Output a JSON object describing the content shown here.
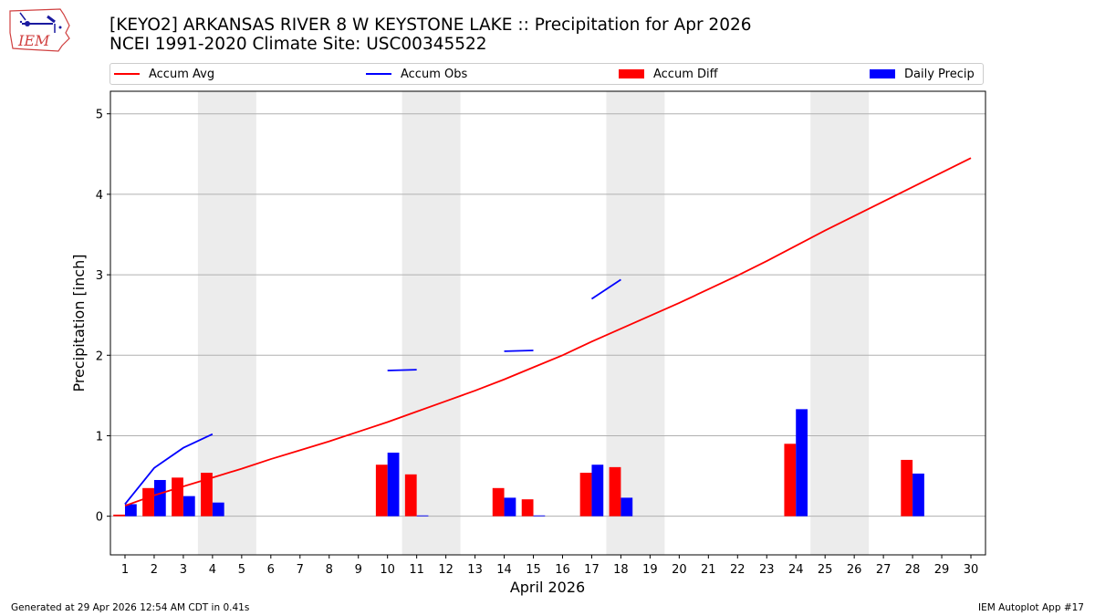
{
  "header": {
    "logo_text": "IEM",
    "title_line1": "[KEYO2] ARKANSAS RIVER 8 W KEYSTONE LAKE :: Precipitation for Apr 2026",
    "title_line2": "NCEI 1991-2020 Climate Site: USC00345522"
  },
  "legend": {
    "accum_avg": "Accum Avg",
    "accum_obs": "Accum Obs",
    "accum_diff": "Accum Diff",
    "daily_precip": "Daily Precip"
  },
  "colors": {
    "avg": "#ff0000",
    "obs": "#0000ff",
    "diff": "#ff0000",
    "daily": "#0000ff",
    "weekend": "#ececec",
    "grid": "#b0b0b0"
  },
  "chart_data": {
    "type": "bar",
    "xlabel": "April 2026",
    "ylabel": "Precipitation [inch]",
    "xlim": [
      0.5,
      30.5
    ],
    "ylim": [
      -0.48,
      5.28
    ],
    "yticks": [
      0,
      1,
      2,
      3,
      4,
      5
    ],
    "days": [
      1,
      2,
      3,
      4,
      5,
      6,
      7,
      8,
      9,
      10,
      11,
      12,
      13,
      14,
      15,
      16,
      17,
      18,
      19,
      20,
      21,
      22,
      23,
      24,
      25,
      26,
      27,
      28,
      29,
      30
    ],
    "weekend_spans": [
      [
        3.5,
        5.5
      ],
      [
        10.5,
        12.5
      ],
      [
        17.5,
        19.5
      ],
      [
        24.5,
        26.5
      ]
    ],
    "accum_avg": [
      0.13,
      0.26,
      0.37,
      0.48,
      0.59,
      0.71,
      0.82,
      0.93,
      1.05,
      1.17,
      1.3,
      1.43,
      1.56,
      1.7,
      1.85,
      2.0,
      2.17,
      2.33,
      2.49,
      2.65,
      2.82,
      2.99,
      3.17,
      3.36,
      3.55,
      3.73,
      3.91,
      4.09,
      4.27,
      4.45
    ],
    "accum_obs_segments": [
      [
        [
          1,
          0.15
        ],
        [
          2,
          0.6
        ],
        [
          3,
          0.85
        ],
        [
          4,
          1.02
        ]
      ],
      [
        [
          10,
          1.81
        ],
        [
          11,
          1.82
        ]
      ],
      [
        [
          14,
          2.05
        ],
        [
          15,
          2.06
        ]
      ],
      [
        [
          17,
          2.7
        ],
        [
          18,
          2.94
        ]
      ]
    ],
    "accum_diff": [
      {
        "day": 1,
        "value": 0.02
      },
      {
        "day": 2,
        "value": 0.35
      },
      {
        "day": 3,
        "value": 0.48
      },
      {
        "day": 4,
        "value": 0.54
      },
      {
        "day": 10,
        "value": 0.64
      },
      {
        "day": 11,
        "value": 0.52
      },
      {
        "day": 14,
        "value": 0.35
      },
      {
        "day": 15,
        "value": 0.21
      },
      {
        "day": 17,
        "value": 0.54
      },
      {
        "day": 18,
        "value": 0.61
      },
      {
        "day": 24,
        "value": 0.9
      },
      {
        "day": 28,
        "value": 0.7
      }
    ],
    "daily_precip": [
      {
        "day": 1,
        "value": 0.15
      },
      {
        "day": 2,
        "value": 0.45
      },
      {
        "day": 3,
        "value": 0.25
      },
      {
        "day": 4,
        "value": 0.17
      },
      {
        "day": 10,
        "value": 0.79
      },
      {
        "day": 11,
        "value": 0.01
      },
      {
        "day": 14,
        "value": 0.23
      },
      {
        "day": 15,
        "value": 0.01
      },
      {
        "day": 17,
        "value": 0.64
      },
      {
        "day": 18,
        "value": 0.23
      },
      {
        "day": 24,
        "value": 1.33
      },
      {
        "day": 28,
        "value": 0.53
      }
    ]
  },
  "footer": {
    "generated": "Generated at 29 Apr 2026 12:54 AM CDT in 0.41s",
    "app": "IEM Autoplot App #17"
  }
}
